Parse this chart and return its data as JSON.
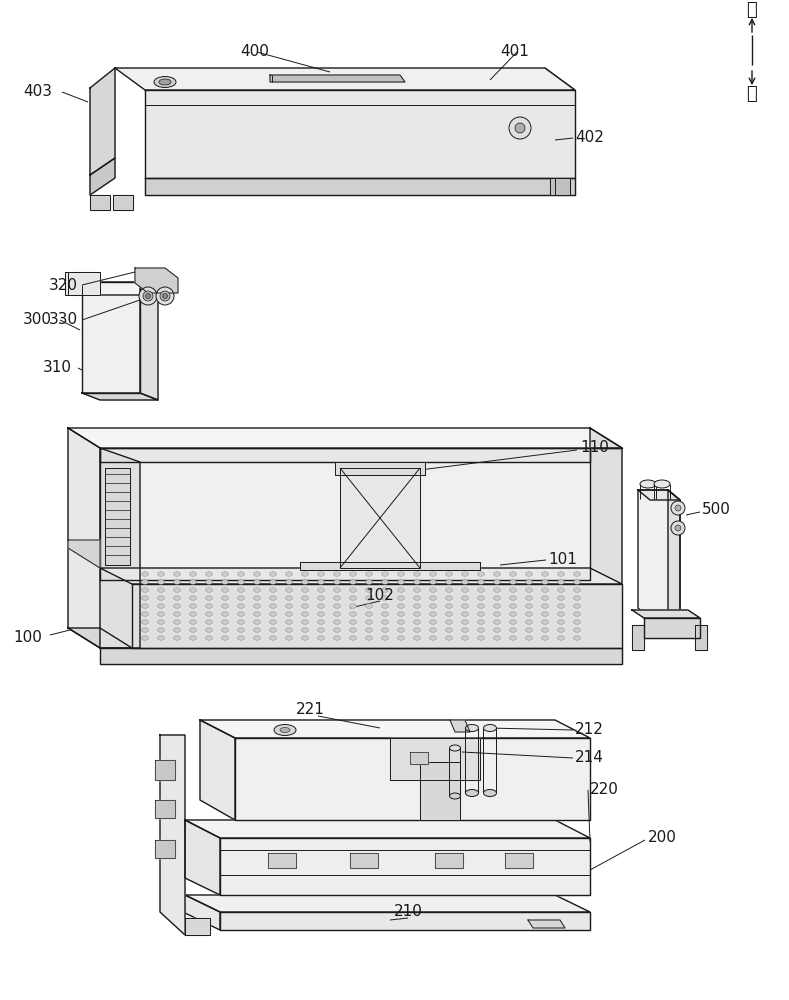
{
  "bg_color": "#ffffff",
  "lc": "#1a1a1a",
  "lw": 1.0,
  "tlw": 0.7,
  "fs": 11,
  "fig_w": 7.89,
  "fig_h": 10.0,
  "dpi": 100
}
